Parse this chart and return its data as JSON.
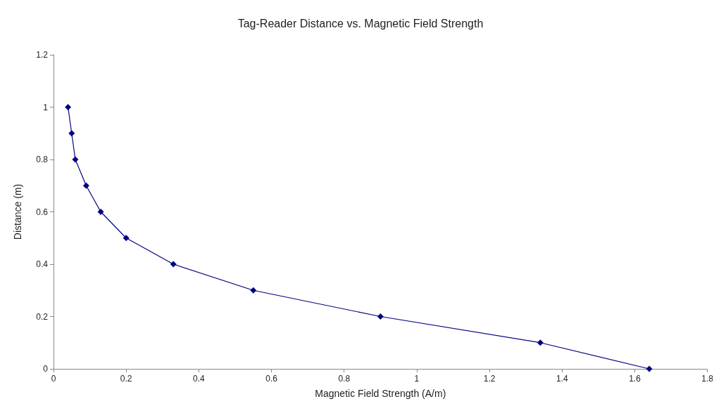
{
  "chart_data": {
    "type": "line",
    "title": "Tag-Reader Distance vs. Magnetic Field Strength",
    "xlabel": "Magnetic Field Strength (A/m)",
    "ylabel": "Distance (m)",
    "series": [
      {
        "color": "#000080",
        "x": [
          0.04,
          0.05,
          0.06,
          0.09,
          0.13,
          0.2,
          0.33,
          0.55,
          0.9,
          1.34,
          1.64
        ],
        "values": [
          1,
          0.9,
          0.8,
          0.7,
          0.6,
          0.5,
          0.4,
          0.3,
          0.2,
          0.1,
          0
        ]
      }
    ],
    "xlim": [
      0,
      1.8
    ],
    "xticks": [
      0,
      0.2,
      0.4,
      0.6,
      0.8,
      1,
      1.2,
      1.4,
      1.6,
      1.8
    ],
    "ylim": [
      0,
      1.2
    ],
    "yticks": [
      0,
      0.2,
      0.4,
      0.6,
      0.8,
      1,
      1.2
    ],
    "marker": "diamond",
    "line_style": "solid"
  }
}
